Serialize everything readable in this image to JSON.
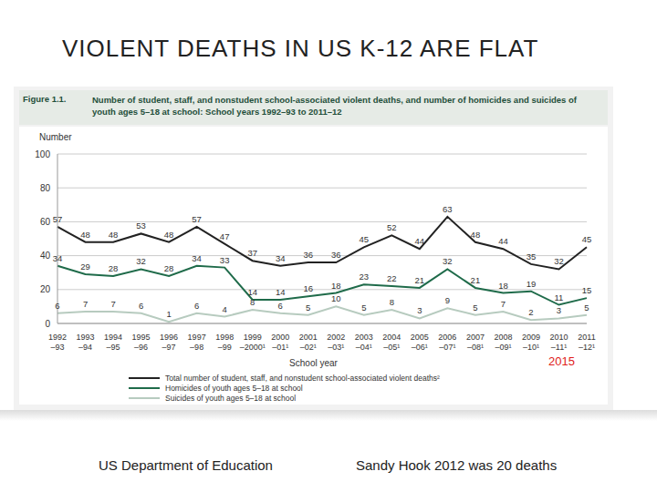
{
  "slide_title": "VIOLENT DEATHS IN US K-12 ARE FLAT",
  "source": "US Department of Education",
  "note": "Sandy Hook 2012 was 20 deaths",
  "chart_data": {
    "type": "line",
    "figure_label": "Figure 1.1.",
    "title": "Number of student, staff, and nonstudent school-associated violent deaths, and number of homicides and suicides of youth ages 5–18 at school: School years 1992–93 to 2011–12",
    "y_label": "Number",
    "x_label": "School year",
    "annotation": "2015",
    "categories": [
      "1992–93",
      "1993–94",
      "1994–95",
      "1995–96",
      "1996–97",
      "1997–98",
      "1998–99",
      "1999–2000¹",
      "2000–01¹",
      "2001–02¹",
      "2002–03¹",
      "2003–04¹",
      "2004–05¹",
      "2005–06¹",
      "2006–07¹",
      "2007–08¹",
      "2008–09¹",
      "2009–10¹",
      "2010–11¹",
      "2011–12¹"
    ],
    "series": [
      {
        "name": "Total number of student, staff, and nonstudent school-associated violent deaths²",
        "color": "#222222",
        "marker": "none",
        "values": [
          57,
          48,
          48,
          53,
          48,
          57,
          47,
          37,
          34,
          36,
          36,
          45,
          52,
          44,
          63,
          48,
          44,
          35,
          32,
          45
        ]
      },
      {
        "name": "Homicides of youth ages 5–18 at school",
        "color": "#1f6b4a",
        "marker": "none",
        "values": [
          34,
          29,
          28,
          32,
          28,
          34,
          33,
          14,
          14,
          16,
          18,
          23,
          22,
          21,
          32,
          21,
          18,
          19,
          11,
          15
        ]
      },
      {
        "name": "Suicides of youth ages 5–18 at school",
        "color": "#b7cbbf",
        "marker": "none",
        "values": [
          6,
          7,
          7,
          6,
          1,
          6,
          4,
          8,
          6,
          5,
          10,
          5,
          8,
          3,
          9,
          5,
          7,
          2,
          3,
          5
        ]
      }
    ],
    "ylim": [
      0,
      100
    ],
    "yticks": [
      0,
      20,
      40,
      60,
      80,
      100
    ],
    "grid": true,
    "data_labels": true
  }
}
